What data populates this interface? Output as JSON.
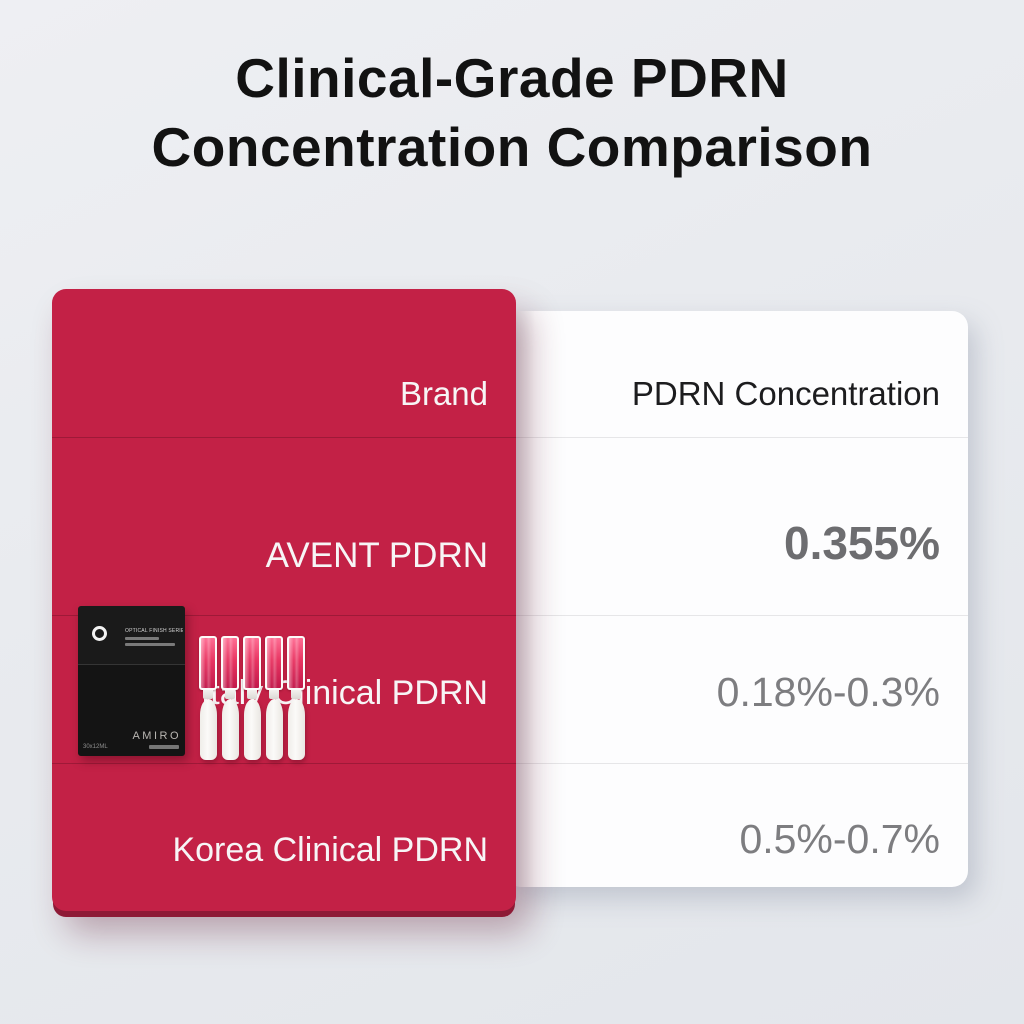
{
  "title": {
    "line1": "Clinical-Grade PDRN",
    "line2": "Concentration Comparison"
  },
  "table": {
    "headers": {
      "brand": "Brand",
      "value": "PDRN Concentration"
    },
    "rows": [
      {
        "brand": "AVENT PDRN",
        "value": "0.355%"
      },
      {
        "brand": "Italy Clinical PDRN",
        "value": "0.18%-0.3%"
      },
      {
        "brand": "Korea Clinical PDRN",
        "value": "0.5%-0.7%"
      }
    ]
  },
  "product": {
    "box_series_text": "OPTICAL FINISH SERIES I",
    "box_brand": "AMIRO",
    "box_quantity": "30x12ML",
    "ampoule_count": 5
  },
  "colors": {
    "accent_red": "#c32146",
    "red_bottom_edge": "#8e1a36",
    "value_gray_bold": "#6d6d70",
    "value_gray": "#7d7d80",
    "background": "#e8eaee"
  },
  "chart_data": {
    "type": "table",
    "title": "Clinical-Grade PDRN Concentration Comparison",
    "columns": [
      "Brand",
      "PDRN Concentration"
    ],
    "rows": [
      [
        "AVENT PDRN",
        "0.355%"
      ],
      [
        "Italy Clinical PDRN",
        "0.18%-0.3%"
      ],
      [
        "Korea Clinical PDRN",
        "0.5%-0.7%"
      ]
    ],
    "highlighted_row": "AVENT PDRN",
    "notes": "AVENT PDRN value 0.355% shown in bold; ranges are min-max concentrations"
  }
}
